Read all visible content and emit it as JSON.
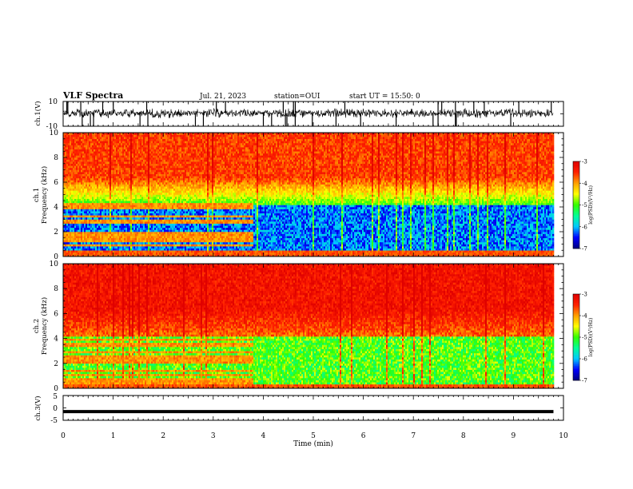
{
  "header": {
    "title": "VLF Spectra",
    "date": "Jul. 21, 2023",
    "station": "station=OUI",
    "start_ut": "start UT =  15:50: 0"
  },
  "chart_data": [
    {
      "id": "ch1-waveform",
      "type": "line",
      "ylabel": "ch.1(V)",
      "ylim": [
        -10,
        10
      ],
      "yticks": [
        "10",
        "-10"
      ],
      "xlim": [
        0,
        10
      ],
      "data_end_min": 9.8,
      "baseline_v": 0.5,
      "noise_amplitude_v": 3
    },
    {
      "id": "ch1-spectrogram",
      "type": "heatmap",
      "ylabel": "ch.1\nFrequency (kHz)",
      "ylim": [
        0,
        10
      ],
      "yticks": [
        "0",
        "2",
        "4",
        "6",
        "8",
        "10"
      ],
      "xlim": [
        0,
        10
      ],
      "data_end_min": 9.8,
      "colorbar": {
        "label": "log(PSD)(V²/Hz)",
        "range": [
          -7,
          -3
        ],
        "ticks": [
          "-3",
          "-4",
          "-5",
          "-6",
          "-7"
        ]
      },
      "structure": {
        "quiet_band_khz": [
          0.5,
          4.2
        ],
        "quiet_level": -6.2,
        "high_band_level": -3.6,
        "tones_until_min": 3.8
      }
    },
    {
      "id": "ch2-spectrogram",
      "type": "heatmap",
      "ylabel": "ch.2\nFrequency (kHz)",
      "ylim": [
        0,
        10
      ],
      "yticks": [
        "0",
        "2",
        "4",
        "6",
        "8",
        "10"
      ],
      "xlim": [
        0,
        10
      ],
      "data_end_min": 9.8,
      "colorbar": {
        "label": "log(PSD)(V²/Hz)",
        "range": [
          -7,
          -3
        ],
        "ticks": [
          "-3",
          "-4",
          "-5",
          "-6",
          "-7"
        ]
      },
      "structure": {
        "quiet_band_khz": [
          0.3,
          4.1
        ],
        "quiet_level": -5.0,
        "high_band_level": -3.3,
        "tones_until_min": 3.8
      }
    },
    {
      "id": "ch3-waveform",
      "type": "line",
      "ylabel": "ch.3(V)",
      "ylim": [
        -5,
        5
      ],
      "yticks": [
        "5",
        "0",
        "-5"
      ],
      "xlim": [
        0,
        10
      ],
      "data_end_min": 9.8,
      "constant_value_v": -1.5
    }
  ],
  "xaxis": {
    "label": "Time (min)",
    "ticks": [
      "0",
      "1",
      "2",
      "3",
      "4",
      "5",
      "6",
      "7",
      "8",
      "9",
      "10"
    ]
  },
  "colors": {
    "trace": "#000000",
    "colormap": [
      "#000080",
      "#0000ff",
      "#00c8ff",
      "#00ff96",
      "#32ff00",
      "#ffff00",
      "#ffa000",
      "#ff2000",
      "#e00000"
    ]
  }
}
